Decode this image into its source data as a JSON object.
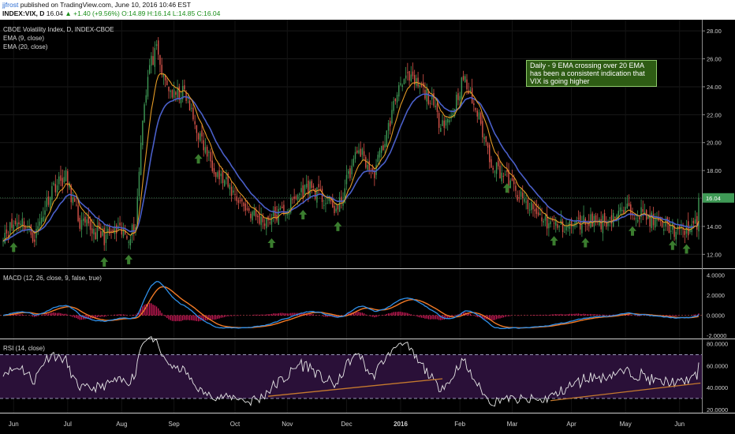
{
  "header": {
    "author": "jjfrost",
    "published": "published on TradingView.com, June 10, 2016 10:46 EST",
    "symbol": "INDEX:VIX, D",
    "last": "16.04",
    "change": "▲ +1.40 (+9.56%)",
    "ohlc": "O:14.89 H:16.14 L:14.85 C:16.04"
  },
  "legends": {
    "main": "CBOE Volatility Index, D, INDEX-CBOE",
    "ema9": "EMA (9, close)",
    "ema20": "EMA (20, close)",
    "macd": "MACD (12, 26, close, 9, false, true)",
    "rsi": "RSI (14, close)"
  },
  "annotation": "Daily - 9 EMA crossing over 20 EMA has been a consistent indication that VIX is going higher",
  "colors": {
    "bull": "#3f9a56",
    "bear": "#d9544a",
    "ema9": "#e39a25",
    "ema20": "#4a5fc9",
    "macd": "#2f8fe8",
    "signal": "#f27a26",
    "hist": "#d11a5a",
    "rsi": "#e6e6e6",
    "rsi_band": "#2a1038",
    "trend": "#c57a2e",
    "arrow": "#3a7d2e",
    "last_price_label": "#3f9a56"
  },
  "chart_data": [
    {
      "type": "candlestick",
      "panel": "main",
      "ylim": [
        11,
        28.8
      ],
      "y_ticks": [
        "28.00",
        "26.00",
        "24.00",
        "22.00",
        "20.00",
        "18.00",
        "16.00",
        "14.00",
        "12.00"
      ],
      "last_price": "16.04",
      "x_labels": [
        "Jun",
        "Jul",
        "Aug",
        "Sep",
        "Oct",
        "Nov",
        "Dec",
        "2016",
        "Feb",
        "Mar",
        "Apr",
        "May",
        "Jun"
      ],
      "close_anchors": [
        [
          0,
          13.5
        ],
        [
          10,
          14.5
        ],
        [
          18,
          13.2
        ],
        [
          28,
          16.8
        ],
        [
          36,
          17.5
        ],
        [
          44,
          14.2
        ],
        [
          52,
          13.7
        ],
        [
          58,
          13.2
        ],
        [
          64,
          13.6
        ],
        [
          72,
          13.4
        ],
        [
          76,
          14.1
        ],
        [
          80,
          22.0
        ],
        [
          84,
          25.5
        ],
        [
          88,
          26.5
        ],
        [
          92,
          24.5
        ],
        [
          98,
          23.3
        ],
        [
          104,
          23.6
        ],
        [
          110,
          21.3
        ],
        [
          116,
          19.4
        ],
        [
          124,
          17.6
        ],
        [
          132,
          16.4
        ],
        [
          140,
          15.2
        ],
        [
          148,
          14.4
        ],
        [
          156,
          14.7
        ],
        [
          164,
          15.4
        ],
        [
          170,
          16.4
        ],
        [
          176,
          16.9
        ],
        [
          184,
          15.9
        ],
        [
          192,
          15.1
        ],
        [
          198,
          17.6
        ],
        [
          204,
          19.6
        ],
        [
          212,
          17.6
        ],
        [
          220,
          20.6
        ],
        [
          228,
          24.6
        ],
        [
          236,
          24.3
        ],
        [
          244,
          23.3
        ],
        [
          250,
          21.6
        ],
        [
          256,
          21.6
        ],
        [
          264,
          24.6
        ],
        [
          272,
          22.1
        ],
        [
          280,
          18.6
        ],
        [
          288,
          17.6
        ],
        [
          296,
          16.1
        ],
        [
          304,
          15.1
        ],
        [
          312,
          14.3
        ],
        [
          320,
          14.0
        ],
        [
          328,
          14.1
        ],
        [
          336,
          14.5
        ],
        [
          344,
          14.3
        ],
        [
          352,
          14.9
        ],
        [
          360,
          15.2
        ],
        [
          368,
          14.8
        ],
        [
          376,
          14.1
        ],
        [
          382,
          14.0
        ],
        [
          388,
          13.5
        ],
        [
          394,
          13.9
        ],
        [
          398,
          14.0
        ]
      ],
      "arrows_at": [
        6,
        58,
        72,
        112,
        154,
        172,
        192,
        289,
        316,
        334,
        361,
        384,
        392
      ]
    },
    {
      "type": "line",
      "panel": "macd",
      "series": [
        {
          "name": "MACD"
        },
        {
          "name": "Signal"
        },
        {
          "name": "Histogram",
          "type": "bar"
        }
      ],
      "ylim": [
        -2.3,
        4.6
      ],
      "y_ticks": [
        "4.0000",
        "2.0000",
        "0.0000",
        "-2.0000"
      ]
    },
    {
      "type": "line",
      "panel": "rsi",
      "series": [
        {
          "name": "RSI"
        }
      ],
      "ylim": [
        17,
        84
      ],
      "y_ticks": [
        "80.0000",
        "60.0000",
        "40.0000",
        "20.0000"
      ],
      "bands": [
        30,
        70
      ],
      "trendlines": [
        [
          [
            152,
            32
          ],
          [
            252,
            48
          ]
        ],
        [
          [
            314,
            28
          ],
          [
            400,
            44
          ]
        ]
      ]
    }
  ]
}
